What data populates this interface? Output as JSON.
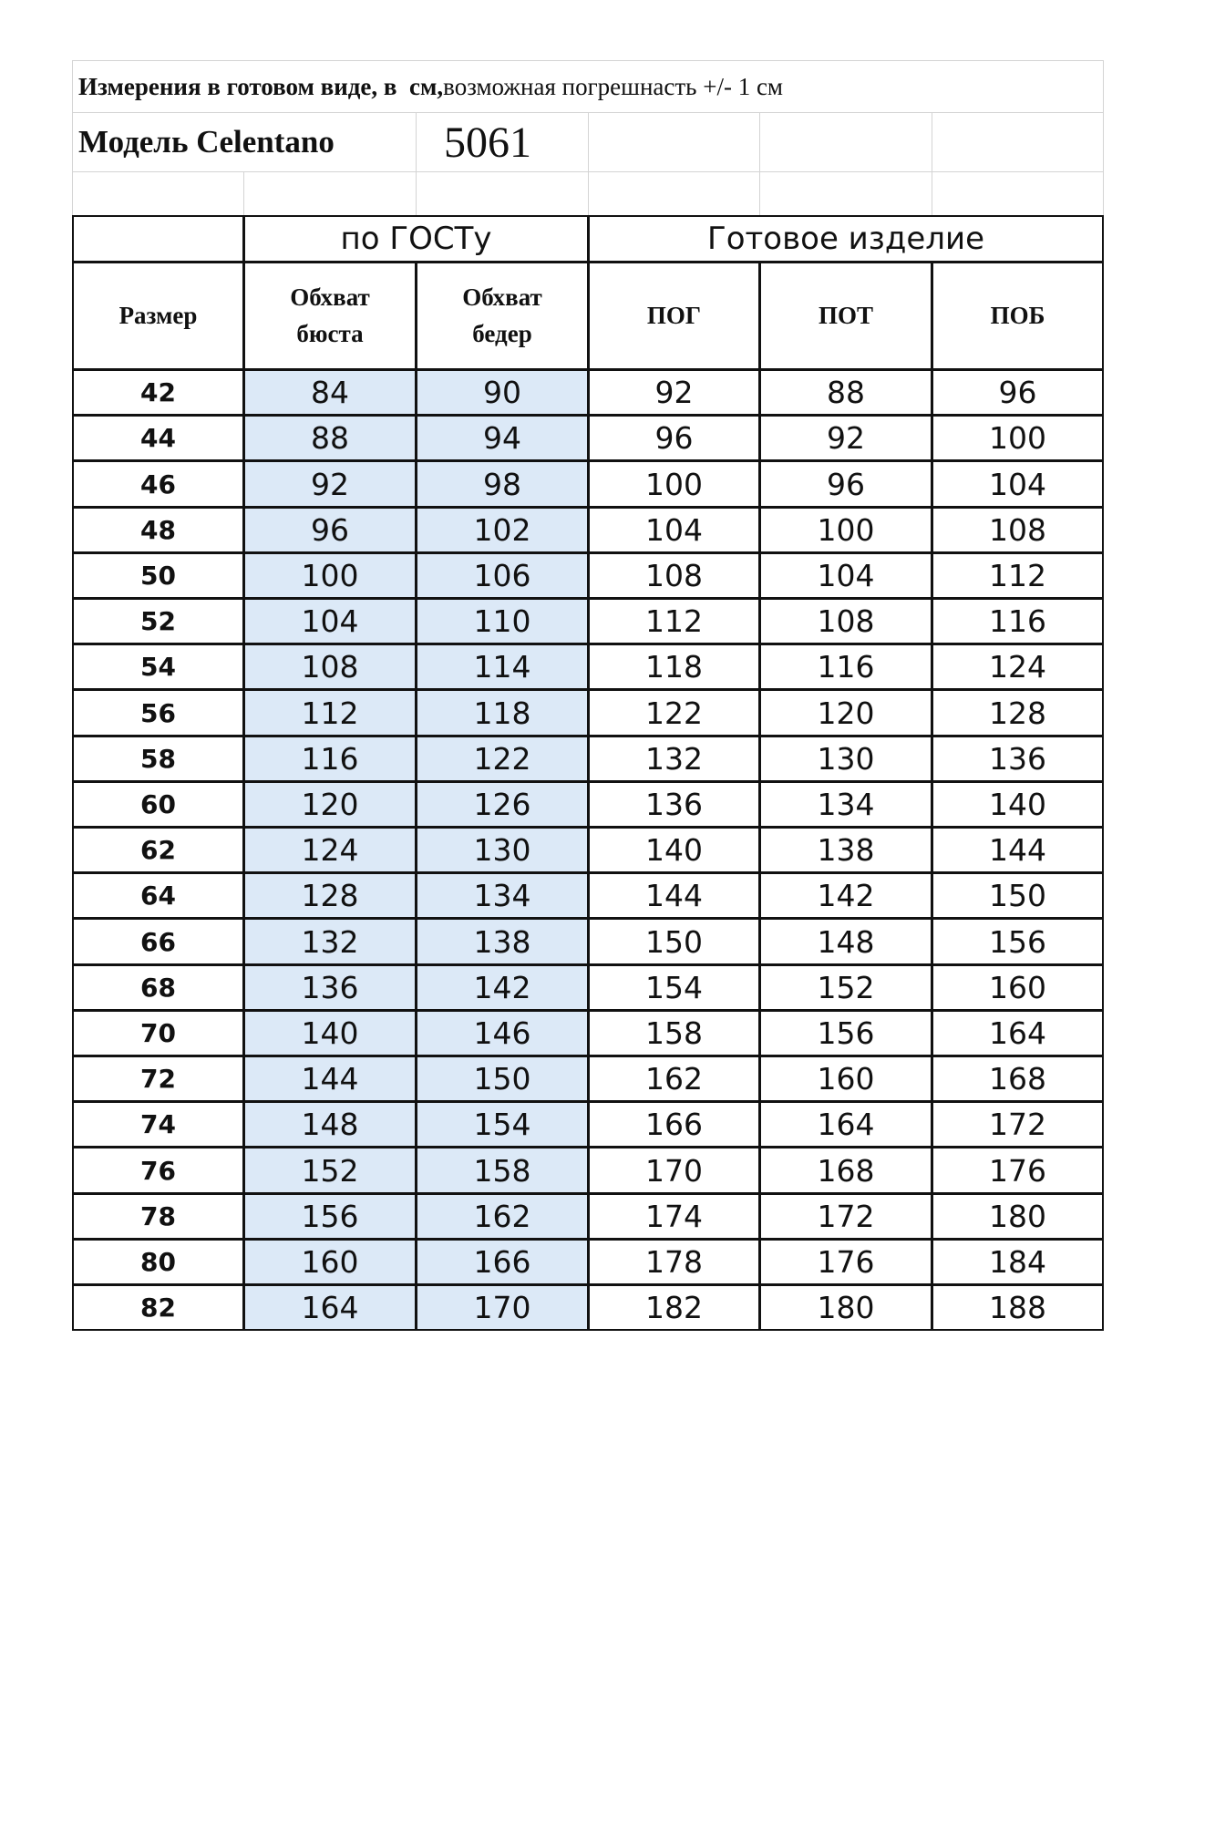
{
  "title": {
    "bold": "Измерения в готовом виде, в  см,",
    "normal": "возможная погрешнасть +/- 1 см"
  },
  "model": {
    "label": "Модель Celentano",
    "number": "5061"
  },
  "groups": [
    "по ГОСТу",
    "Готовое изделие"
  ],
  "headers": [
    "Размер",
    "Обхват бюста",
    "Обхват бедер",
    "ПОГ",
    "ПОТ",
    "ПОБ"
  ],
  "rows": [
    [
      42,
      84,
      90,
      92,
      88,
      96
    ],
    [
      44,
      88,
      94,
      96,
      92,
      100
    ],
    [
      46,
      92,
      98,
      100,
      96,
      104
    ],
    [
      48,
      96,
      102,
      104,
      100,
      108
    ],
    [
      50,
      100,
      106,
      108,
      104,
      112
    ],
    [
      52,
      104,
      110,
      112,
      108,
      116
    ],
    [
      54,
      108,
      114,
      118,
      116,
      124
    ],
    [
      56,
      112,
      118,
      122,
      120,
      128
    ],
    [
      58,
      116,
      122,
      132,
      130,
      136
    ],
    [
      60,
      120,
      126,
      136,
      134,
      140
    ],
    [
      62,
      124,
      130,
      140,
      138,
      144
    ],
    [
      64,
      128,
      134,
      144,
      142,
      150
    ],
    [
      66,
      132,
      138,
      150,
      148,
      156
    ],
    [
      68,
      136,
      142,
      154,
      152,
      160
    ],
    [
      70,
      140,
      146,
      158,
      156,
      164
    ],
    [
      72,
      144,
      150,
      162,
      160,
      168
    ],
    [
      74,
      148,
      154,
      166,
      164,
      172
    ],
    [
      76,
      152,
      158,
      170,
      168,
      176
    ],
    [
      78,
      156,
      162,
      174,
      172,
      180
    ],
    [
      80,
      160,
      166,
      178,
      176,
      184
    ],
    [
      82,
      164,
      170,
      182,
      180,
      188
    ]
  ]
}
